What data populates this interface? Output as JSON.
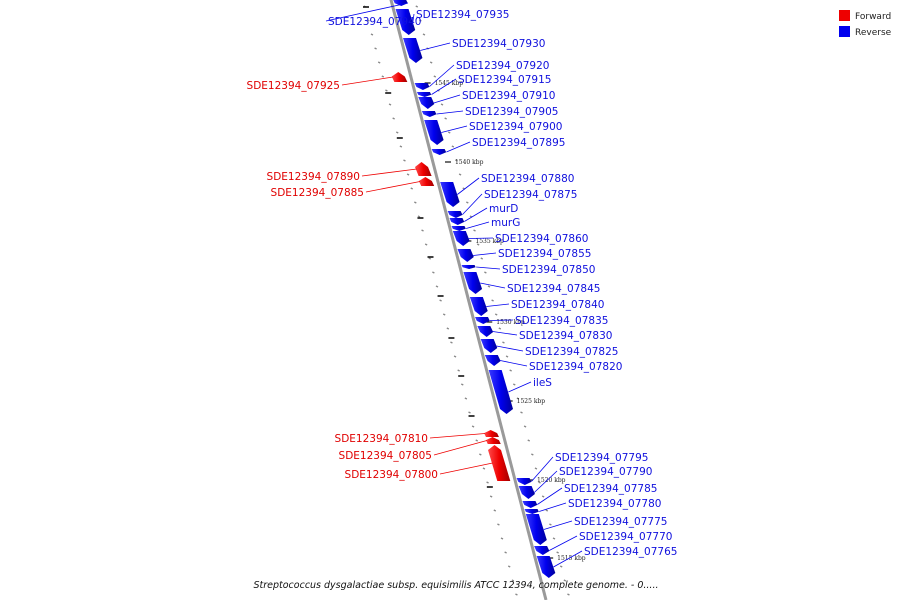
{
  "legend": {
    "forward": {
      "label": "Forward",
      "color": "#ee0000"
    },
    "reverse": {
      "label": "Reverse",
      "color": "#0000ee"
    }
  },
  "caption": "Streptococcus dysgalactiae subsp. equisimilis ATCC 12394, complete genome. - 0.....",
  "ticks": [
    "1545 kbp",
    "1540 kbp",
    "1535 kbp",
    "1530 kbp",
    "1525 kbp",
    "1520 kbp",
    "1515 kbp"
  ],
  "genes": [
    {
      "name": "SDE12394_07940",
      "strand": "reverse"
    },
    {
      "name": "SDE12394_07935",
      "strand": "reverse"
    },
    {
      "name": "SDE12394_07930",
      "strand": "reverse"
    },
    {
      "name": "SDE12394_07925",
      "strand": "forward"
    },
    {
      "name": "SDE12394_07920",
      "strand": "reverse"
    },
    {
      "name": "SDE12394_07915",
      "strand": "reverse"
    },
    {
      "name": "SDE12394_07910",
      "strand": "reverse"
    },
    {
      "name": "SDE12394_07905",
      "strand": "reverse"
    },
    {
      "name": "SDE12394_07900",
      "strand": "reverse"
    },
    {
      "name": "SDE12394_07895",
      "strand": "reverse"
    },
    {
      "name": "SDE12394_07890",
      "strand": "forward"
    },
    {
      "name": "SDE12394_07885",
      "strand": "forward"
    },
    {
      "name": "SDE12394_07880",
      "strand": "reverse"
    },
    {
      "name": "SDE12394_07875",
      "strand": "reverse"
    },
    {
      "name": "murD",
      "strand": "reverse"
    },
    {
      "name": "murG",
      "strand": "reverse"
    },
    {
      "name": "SDE12394_07860",
      "strand": "reverse"
    },
    {
      "name": "SDE12394_07855",
      "strand": "reverse"
    },
    {
      "name": "SDE12394_07850",
      "strand": "reverse"
    },
    {
      "name": "SDE12394_07845",
      "strand": "reverse"
    },
    {
      "name": "SDE12394_07840",
      "strand": "reverse"
    },
    {
      "name": "SDE12394_07835",
      "strand": "reverse"
    },
    {
      "name": "SDE12394_07830",
      "strand": "reverse"
    },
    {
      "name": "SDE12394_07825",
      "strand": "reverse"
    },
    {
      "name": "SDE12394_07820",
      "strand": "reverse"
    },
    {
      "name": "ileS",
      "strand": "reverse"
    },
    {
      "name": "SDE12394_07810",
      "strand": "forward"
    },
    {
      "name": "SDE12394_07805",
      "strand": "forward"
    },
    {
      "name": "SDE12394_07800",
      "strand": "forward"
    },
    {
      "name": "SDE12394_07795",
      "strand": "reverse"
    },
    {
      "name": "SDE12394_07790",
      "strand": "reverse"
    },
    {
      "name": "SDE12394_07785",
      "strand": "reverse"
    },
    {
      "name": "SDE12394_07780",
      "strand": "reverse"
    },
    {
      "name": "SDE12394_07775",
      "strand": "reverse"
    },
    {
      "name": "SDE12394_07770",
      "strand": "reverse"
    },
    {
      "name": "SDE12394_07765",
      "strand": "reverse"
    }
  ]
}
